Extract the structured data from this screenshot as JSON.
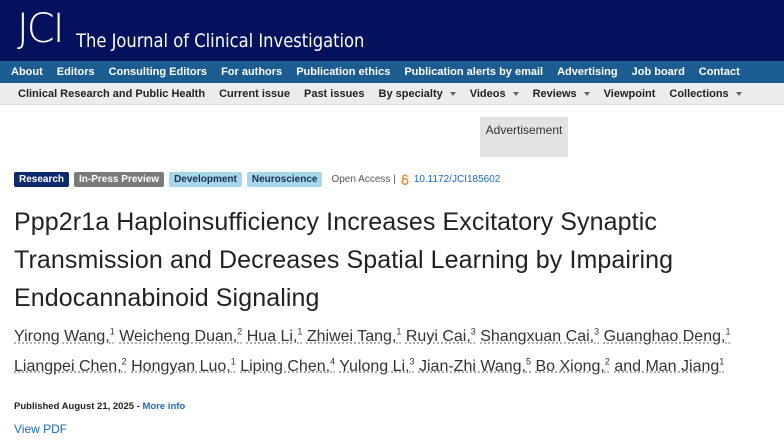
{
  "header": {
    "logo": "JCI",
    "title": "The Journal of Clinical Investigation"
  },
  "nav_primary": [
    "About",
    "Editors",
    "Consulting Editors",
    "For authors",
    "Publication ethics",
    "Publication alerts by email",
    "Advertising",
    "Job board",
    "Contact"
  ],
  "nav_secondary": [
    {
      "label": "Clinical Research and Public Health",
      "dropdown": false
    },
    {
      "label": "Current issue",
      "dropdown": false
    },
    {
      "label": "Past issues",
      "dropdown": false
    },
    {
      "label": "By specialty",
      "dropdown": true
    },
    {
      "label": "Videos",
      "dropdown": true
    },
    {
      "label": "Reviews",
      "dropdown": true
    },
    {
      "label": "Viewpoint",
      "dropdown": false
    },
    {
      "label": "Collections",
      "dropdown": true
    }
  ],
  "advertisement": "Advertisement",
  "tags": [
    {
      "label": "Research",
      "style": "navy"
    },
    {
      "label": "In-Press Preview",
      "style": "gray"
    },
    {
      "label": "Development",
      "style": "light"
    },
    {
      "label": "Neuroscience",
      "style": "light"
    }
  ],
  "access": "Open Access |",
  "doi": "10.1172/JCI185602",
  "article_title": "Ppp2r1a Haploinsufficiency Increases Excitatory Synaptic Transmission and Decreases Spatial Learning by Impairing Endocannabinoid Signaling",
  "authors": [
    {
      "name": "Yirong Wang,",
      "affiliation": 1
    },
    {
      "name": "Weicheng Duan,",
      "affiliation": 2
    },
    {
      "name": "Hua Li,",
      "affiliation": 1
    },
    {
      "name": "Zhiwei Tang,",
      "affiliation": 1
    },
    {
      "name": "Ruyi Cai,",
      "affiliation": 3
    },
    {
      "name": "Shangxuan Cai,",
      "affiliation": 3
    },
    {
      "name": "Guanghao Deng,",
      "affiliation": 1
    },
    {
      "name": "Liangpei Chen,",
      "affiliation": 2
    },
    {
      "name": "Hongyan Luo,",
      "affiliation": 1
    },
    {
      "name": "Liping Chen,",
      "affiliation": 4
    },
    {
      "name": "Yulong Li,",
      "affiliation": 3
    },
    {
      "name": "Jian-Zhi Wang,",
      "affiliation": 5
    },
    {
      "name": "Bo Xiong,",
      "affiliation": 2
    },
    {
      "name": "and Man Jiang",
      "affiliation": 1
    }
  ],
  "published": "Published August 21, 2025 -",
  "more_info": "More info",
  "view_pdf": "View PDF"
}
